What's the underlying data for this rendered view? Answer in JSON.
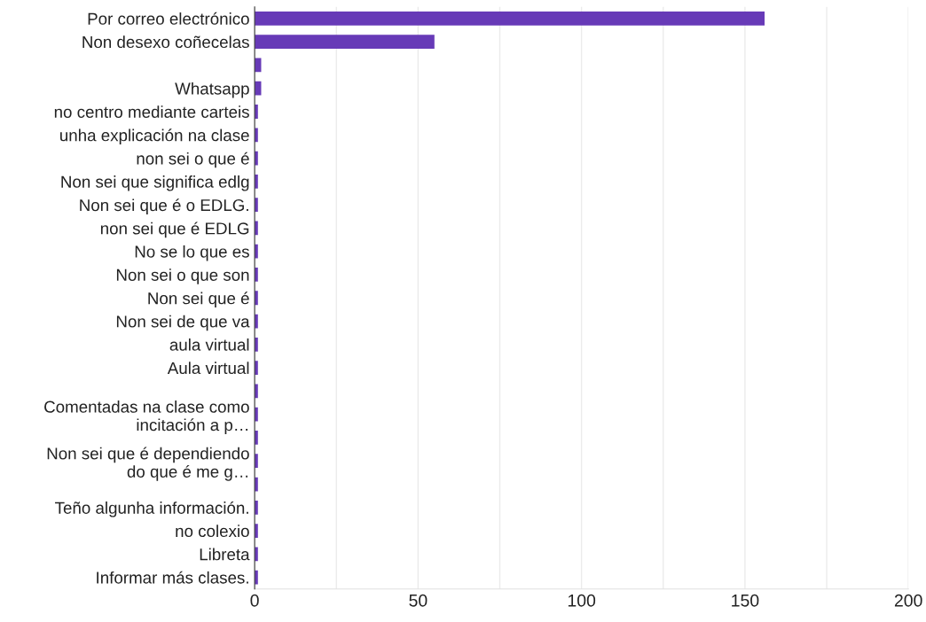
{
  "chart_data": {
    "type": "bar",
    "orientation": "horizontal",
    "categories": [
      "Por correo electrónico",
      "Non desexo coñecelas",
      null,
      "Whatsapp",
      "no centro mediante carteis",
      "unha explicación na clase",
      "non sei o que é",
      "Non sei que significa edlg",
      "Non sei que é o EDLG.",
      "non sei que é EDLG",
      "No se lo que es",
      "Non sei o que son",
      "Non sei que é",
      "Non sei de que va",
      "aula virtual",
      "Aula virtual",
      null,
      "Comentadas na clase como\nincitación a p…",
      null,
      "Non sei que é dependiendo\ndo que é me g…",
      null,
      "Teño algunha información.",
      "no colexio",
      "Libreta",
      "Informar más clases."
    ],
    "values": [
      156,
      55,
      2,
      2,
      1,
      1,
      1,
      1,
      1,
      1,
      1,
      1,
      1,
      1,
      1,
      1,
      1,
      1,
      1,
      1,
      1,
      1,
      1,
      1,
      1
    ],
    "color": "#673ab7",
    "xlim": [
      0,
      200
    ],
    "xticks": [
      0,
      {
        "value": 25,
        "label": null
      },
      50,
      {
        "value": 75,
        "label": null
      },
      100,
      {
        "value": 125,
        "label": null
      },
      150,
      {
        "value": 175,
        "label": null
      },
      200
    ],
    "grid": "x"
  }
}
